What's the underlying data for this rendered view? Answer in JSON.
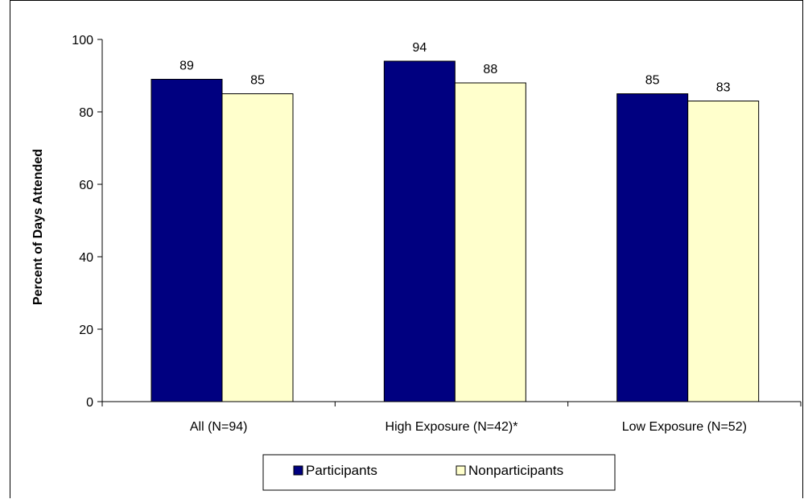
{
  "chart_data": {
    "type": "bar",
    "title": "",
    "xlabel": "",
    "ylabel": "Percent of Days Attended",
    "ylim": [
      0,
      100
    ],
    "yticks": [
      0,
      20,
      40,
      60,
      80,
      100
    ],
    "grid": false,
    "legend_position": "bottom",
    "categories": [
      "All (N=94)",
      "High Exposure (N=42)*",
      "Low  Exposure (N=52)"
    ],
    "series": [
      {
        "name": "Participants",
        "values": [
          89,
          94,
          85
        ],
        "labels": [
          "89",
          "94",
          "85"
        ],
        "color": "#000080"
      },
      {
        "name": "Nonparticipants",
        "values": [
          85,
          88,
          83
        ],
        "labels": [
          "85",
          "88",
          "83"
        ],
        "color": "#FFFFCC"
      }
    ]
  }
}
